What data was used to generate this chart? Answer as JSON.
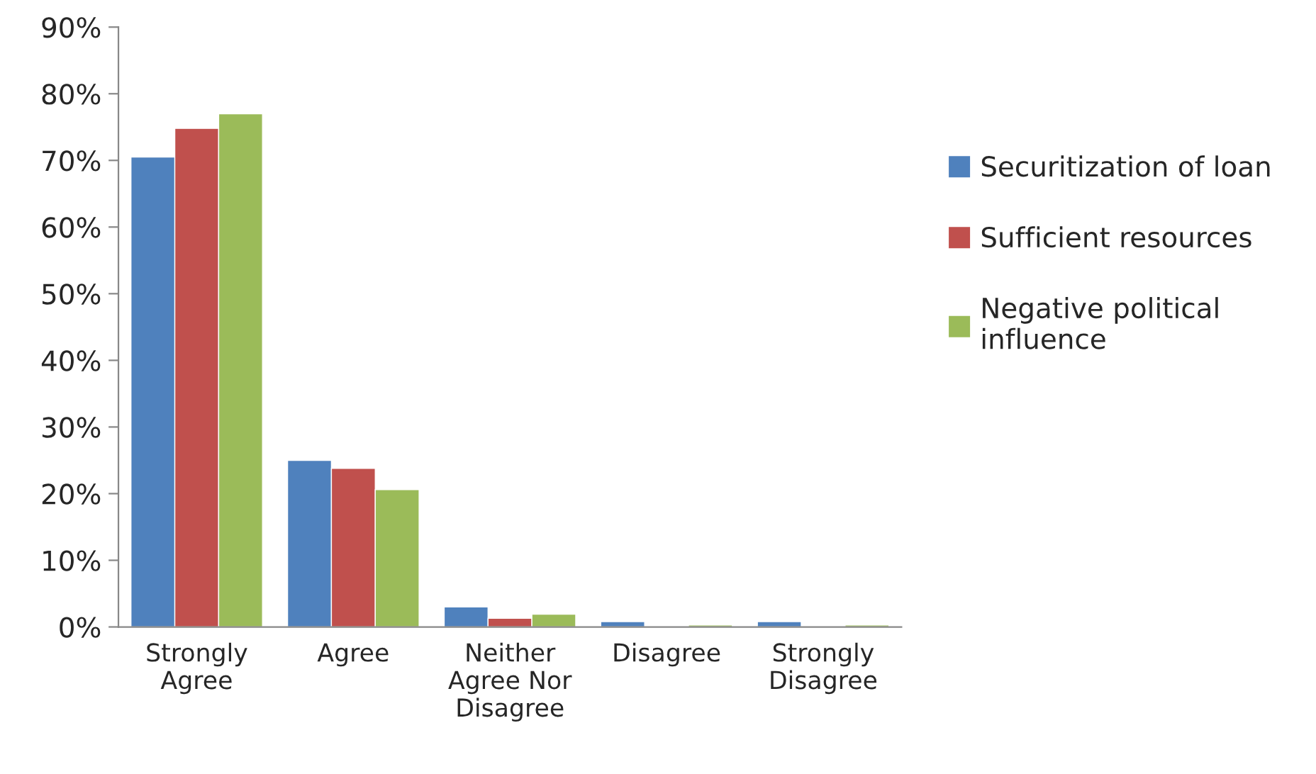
{
  "chart_data": {
    "type": "bar",
    "categories": [
      "Strongly\nAgree",
      "Agree",
      "Neither\nAgree Nor\nDisagree",
      "Disagree",
      "Strongly\nDisagree"
    ],
    "series": [
      {
        "name": "Securitization of loan",
        "color": "#4f81bd",
        "values": [
          70.5,
          25,
          3,
          0.8,
          0.8
        ]
      },
      {
        "name": "Sufficient resources",
        "color": "#c0504d",
        "values": [
          74.8,
          23.8,
          1.3,
          null,
          null
        ]
      },
      {
        "name": "Negative political\ninfluence",
        "color": "#9bbb59",
        "values": [
          77,
          20.6,
          1.9,
          0.3,
          0.3
        ]
      }
    ],
    "ylim": [
      0,
      90
    ],
    "yticks": [
      {
        "value": 0,
        "label": "0%"
      },
      {
        "value": 10,
        "label": "10%"
      },
      {
        "value": 20,
        "label": "20%"
      },
      {
        "value": 30,
        "label": "30%"
      },
      {
        "value": 40,
        "label": "40%"
      },
      {
        "value": 50,
        "label": "50%"
      },
      {
        "value": 60,
        "label": "60%"
      },
      {
        "value": 70,
        "label": "70%"
      },
      {
        "value": 80,
        "label": "80%"
      },
      {
        "value": 90,
        "label": "90%"
      }
    ],
    "grid": false,
    "legend": "right"
  }
}
